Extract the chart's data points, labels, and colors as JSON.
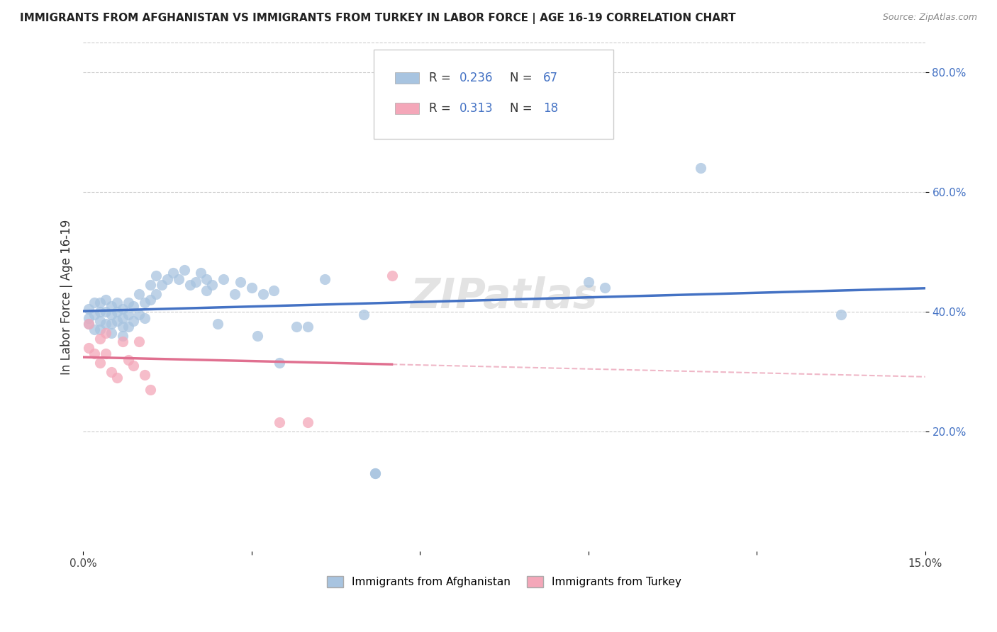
{
  "title": "IMMIGRANTS FROM AFGHANISTAN VS IMMIGRANTS FROM TURKEY IN LABOR FORCE | AGE 16-19 CORRELATION CHART",
  "source_text": "Source: ZipAtlas.com",
  "ylabel": "In Labor Force | Age 16-19",
  "x_min": 0.0,
  "x_max": 0.15,
  "y_min": 0.0,
  "y_max": 0.85,
  "x_ticks": [
    0.0,
    0.03,
    0.06,
    0.09,
    0.12,
    0.15
  ],
  "x_tick_labels": [
    "0.0%",
    "",
    "",
    "",
    "",
    "15.0%"
  ],
  "y_ticks": [
    0.2,
    0.4,
    0.6,
    0.8
  ],
  "y_tick_labels": [
    "20.0%",
    "40.0%",
    "60.0%",
    "80.0%"
  ],
  "afghanistan_R": 0.236,
  "afghanistan_N": 67,
  "turkey_R": 0.313,
  "turkey_N": 18,
  "afghanistan_color": "#a8c4e0",
  "turkey_color": "#f4a7b9",
  "afghanistan_line_color": "#4472c4",
  "turkey_line_color": "#e07090",
  "watermark": "ZIPatlas",
  "afg_x": [
    0.001,
    0.001,
    0.001,
    0.002,
    0.002,
    0.002,
    0.003,
    0.003,
    0.003,
    0.003,
    0.004,
    0.004,
    0.004,
    0.005,
    0.005,
    0.005,
    0.005,
    0.006,
    0.006,
    0.006,
    0.007,
    0.007,
    0.007,
    0.007,
    0.008,
    0.008,
    0.008,
    0.009,
    0.009,
    0.01,
    0.01,
    0.011,
    0.011,
    0.012,
    0.012,
    0.013,
    0.013,
    0.014,
    0.015,
    0.016,
    0.017,
    0.018,
    0.019,
    0.02,
    0.021,
    0.022,
    0.022,
    0.023,
    0.024,
    0.025,
    0.027,
    0.028,
    0.03,
    0.031,
    0.032,
    0.034,
    0.035,
    0.038,
    0.04,
    0.043,
    0.05,
    0.052,
    0.052,
    0.09,
    0.093,
    0.11,
    0.135
  ],
  "afg_y": [
    0.405,
    0.39,
    0.38,
    0.415,
    0.395,
    0.37,
    0.415,
    0.4,
    0.385,
    0.37,
    0.4,
    0.38,
    0.42,
    0.395,
    0.41,
    0.38,
    0.365,
    0.4,
    0.385,
    0.415,
    0.405,
    0.39,
    0.375,
    0.36,
    0.415,
    0.395,
    0.375,
    0.41,
    0.385,
    0.43,
    0.395,
    0.415,
    0.39,
    0.445,
    0.42,
    0.46,
    0.43,
    0.445,
    0.455,
    0.465,
    0.455,
    0.47,
    0.445,
    0.45,
    0.465,
    0.455,
    0.435,
    0.445,
    0.38,
    0.455,
    0.43,
    0.45,
    0.44,
    0.36,
    0.43,
    0.435,
    0.315,
    0.375,
    0.375,
    0.455,
    0.395,
    0.13,
    0.13,
    0.45,
    0.44,
    0.64,
    0.395
  ],
  "tur_x": [
    0.001,
    0.001,
    0.002,
    0.003,
    0.003,
    0.004,
    0.004,
    0.005,
    0.006,
    0.007,
    0.008,
    0.009,
    0.01,
    0.011,
    0.012,
    0.035,
    0.04,
    0.055
  ],
  "tur_y": [
    0.38,
    0.34,
    0.33,
    0.355,
    0.315,
    0.365,
    0.33,
    0.3,
    0.29,
    0.35,
    0.32,
    0.31,
    0.35,
    0.295,
    0.27,
    0.215,
    0.215,
    0.46
  ]
}
